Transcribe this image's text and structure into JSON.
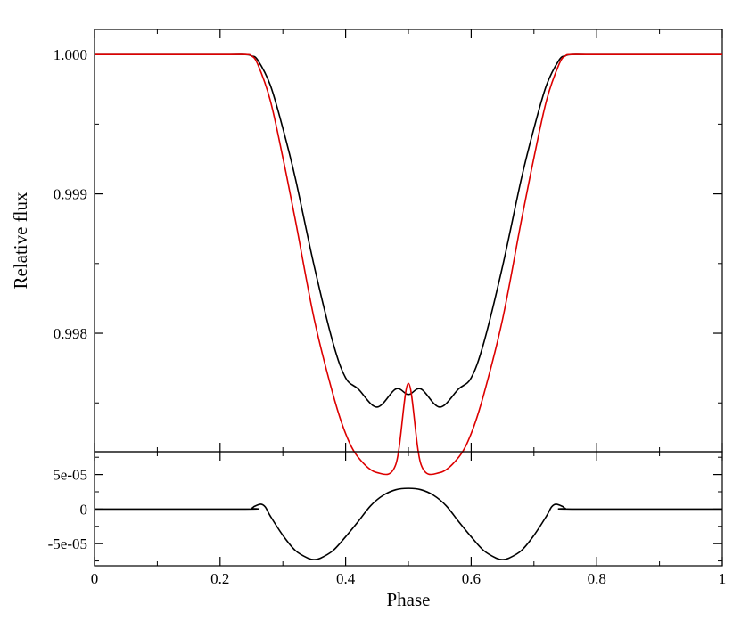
{
  "chart_data": [
    {
      "type": "line",
      "ylabel": "Relative flux",
      "xlabel": "",
      "xlim": [
        0,
        1
      ],
      "ylim": [
        0.99715,
        1.00018
      ],
      "x_ticks": [
        0,
        0.2,
        0.4,
        0.6,
        0.8,
        1
      ],
      "y_ticks": [
        {
          "value": 0.998,
          "label": "0.998"
        },
        {
          "value": 0.999,
          "label": "0.999"
        },
        {
          "value": 1.0,
          "label": "1.000"
        }
      ],
      "grid": false,
      "colors": {
        "model_a": "#000000",
        "model_b": "#dd0000"
      },
      "series": [
        {
          "x": [
            0,
            0.2,
            0.24,
            0.25,
            0.26,
            0.28,
            0.3,
            0.32,
            0.35,
            0.38,
            0.4,
            0.42,
            0.45,
            0.48,
            0.5,
            0.52,
            0.55,
            0.58,
            0.6,
            0.62,
            0.65,
            0.68,
            0.7,
            0.72,
            0.74,
            0.75,
            0.76,
            0.8,
            1
          ],
          "y": [
            1.0,
            1.0,
            1.0,
            0.99999,
            0.99996,
            0.99978,
            0.99947,
            0.99911,
            0.99848,
            0.99793,
            0.99768,
            0.9976,
            0.99747,
            0.9976,
            0.99756,
            0.9976,
            0.99747,
            0.9976,
            0.99768,
            0.99793,
            0.99848,
            0.99911,
            0.99947,
            0.99978,
            0.99996,
            0.99999,
            1.0,
            1.0,
            1.0
          ]
        },
        {
          "x": [
            0,
            0.2,
            0.24,
            0.25,
            0.26,
            0.28,
            0.3,
            0.32,
            0.35,
            0.38,
            0.4,
            0.42,
            0.45,
            0.48,
            0.5,
            0.52,
            0.55,
            0.58,
            0.6,
            0.62,
            0.65,
            0.68,
            0.7,
            0.72,
            0.74,
            0.75,
            0.76,
            0.8,
            1
          ],
          "y": [
            1.0,
            1.0,
            1.0,
            0.99999,
            0.99993,
            0.99967,
            0.99926,
            0.99881,
            0.9981,
            0.99756,
            0.99728,
            0.99711,
            0.997,
            0.99706,
            0.99764,
            0.99706,
            0.997,
            0.99711,
            0.99728,
            0.99756,
            0.9981,
            0.99881,
            0.99926,
            0.99967,
            0.99993,
            0.99999,
            1.0,
            1.0,
            1.0
          ]
        }
      ]
    },
    {
      "type": "line",
      "xlabel": "Phase",
      "ylabel": "",
      "xlim": [
        0,
        1
      ],
      "ylim": [
        -8.2e-05,
        8.3e-05
      ],
      "x_ticks": [
        {
          "value": 0,
          "label": "0"
        },
        {
          "value": 0.2,
          "label": "0.2"
        },
        {
          "value": 0.4,
          "label": "0.4"
        },
        {
          "value": 0.6,
          "label": "0.6"
        },
        {
          "value": 0.8,
          "label": "0.8"
        },
        {
          "value": 1,
          "label": "1"
        }
      ],
      "y_ticks": [
        {
          "value": 5e-05,
          "label": "5e-05"
        },
        {
          "value": 0,
          "label": "0"
        },
        {
          "value": -5e-05,
          "label": "-5e-05"
        }
      ],
      "grid": false,
      "colors": {
        "residual": "#000000"
      },
      "series": [
        {
          "x": [
            0,
            0.24,
            0.25,
            0.255,
            0.265,
            0.272,
            0.28,
            0.3,
            0.32,
            0.34,
            0.35,
            0.36,
            0.38,
            0.4,
            0.42,
            0.44,
            0.46,
            0.48,
            0.5,
            0.52,
            0.54,
            0.56,
            0.58,
            0.6,
            0.62,
            0.64,
            0.65,
            0.66,
            0.68,
            0.7,
            0.72,
            0.728,
            0.735,
            0.745,
            0.75,
            0.76,
            1
          ],
          "y": [
            0,
            0,
            1e-06,
            4e-06,
            7e-06,
            3e-06,
            -1e-05,
            -3.8e-05,
            -6e-05,
            -7.1e-05,
            -7.3e-05,
            -7.1e-05,
            -6e-05,
            -4e-05,
            -1.8e-05,
            5e-06,
            2e-05,
            2.8e-05,
            3e-05,
            2.8e-05,
            2e-05,
            5e-06,
            -1.8e-05,
            -4e-05,
            -6e-05,
            -7.1e-05,
            -7.3e-05,
            -7.1e-05,
            -6e-05,
            -3.8e-05,
            -1e-05,
            3e-06,
            7e-06,
            4e-06,
            1e-06,
            0,
            0
          ]
        }
      ]
    }
  ]
}
